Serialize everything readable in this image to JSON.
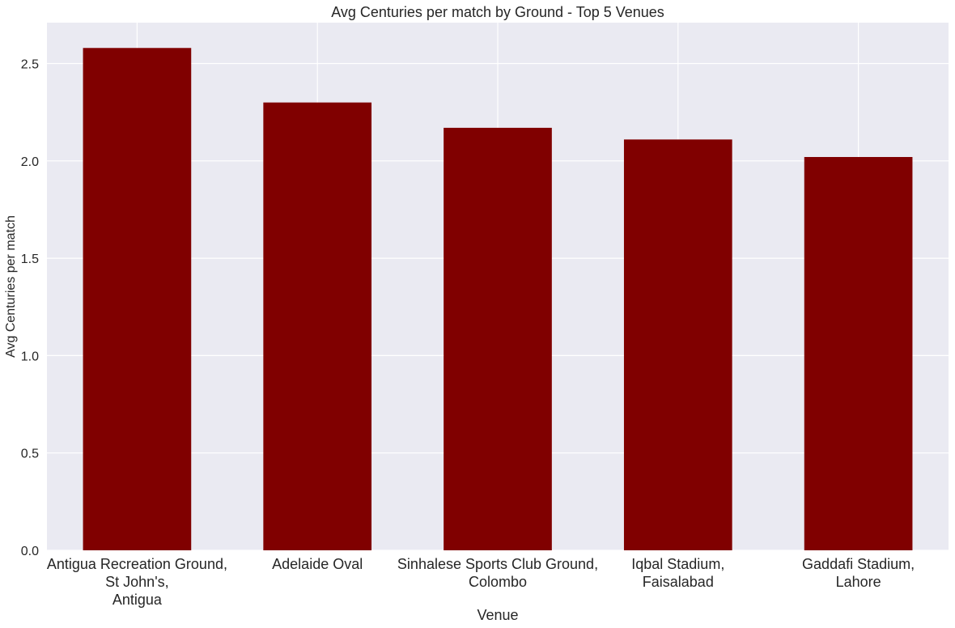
{
  "chart_data": {
    "type": "bar",
    "title": "Avg Centuries per match by Ground - Top 5 Venues",
    "xlabel": "Venue",
    "ylabel": "Avg Centuries per match",
    "categories": [
      "Antigua Recreation Ground,\nSt John's,\nAntigua",
      "Adelaide Oval",
      "Sinhalese Sports Club Ground,\nColombo",
      "Iqbal Stadium,\nFaisalabad",
      "Gaddafi Stadium,\nLahore"
    ],
    "values": [
      2.58,
      2.3,
      2.17,
      2.11,
      2.02
    ],
    "ylim": [
      0,
      2.71
    ],
    "yticks": [
      0.0,
      0.5,
      1.0,
      1.5,
      2.0,
      2.5
    ],
    "ytick_labels": [
      "0.0",
      "0.5",
      "1.0",
      "1.5",
      "2.0",
      "2.5"
    ],
    "grid": true,
    "colors": {
      "bar": "#800000",
      "background": "#eaeaf2",
      "grid": "#ffffff",
      "text": "#262626"
    }
  }
}
